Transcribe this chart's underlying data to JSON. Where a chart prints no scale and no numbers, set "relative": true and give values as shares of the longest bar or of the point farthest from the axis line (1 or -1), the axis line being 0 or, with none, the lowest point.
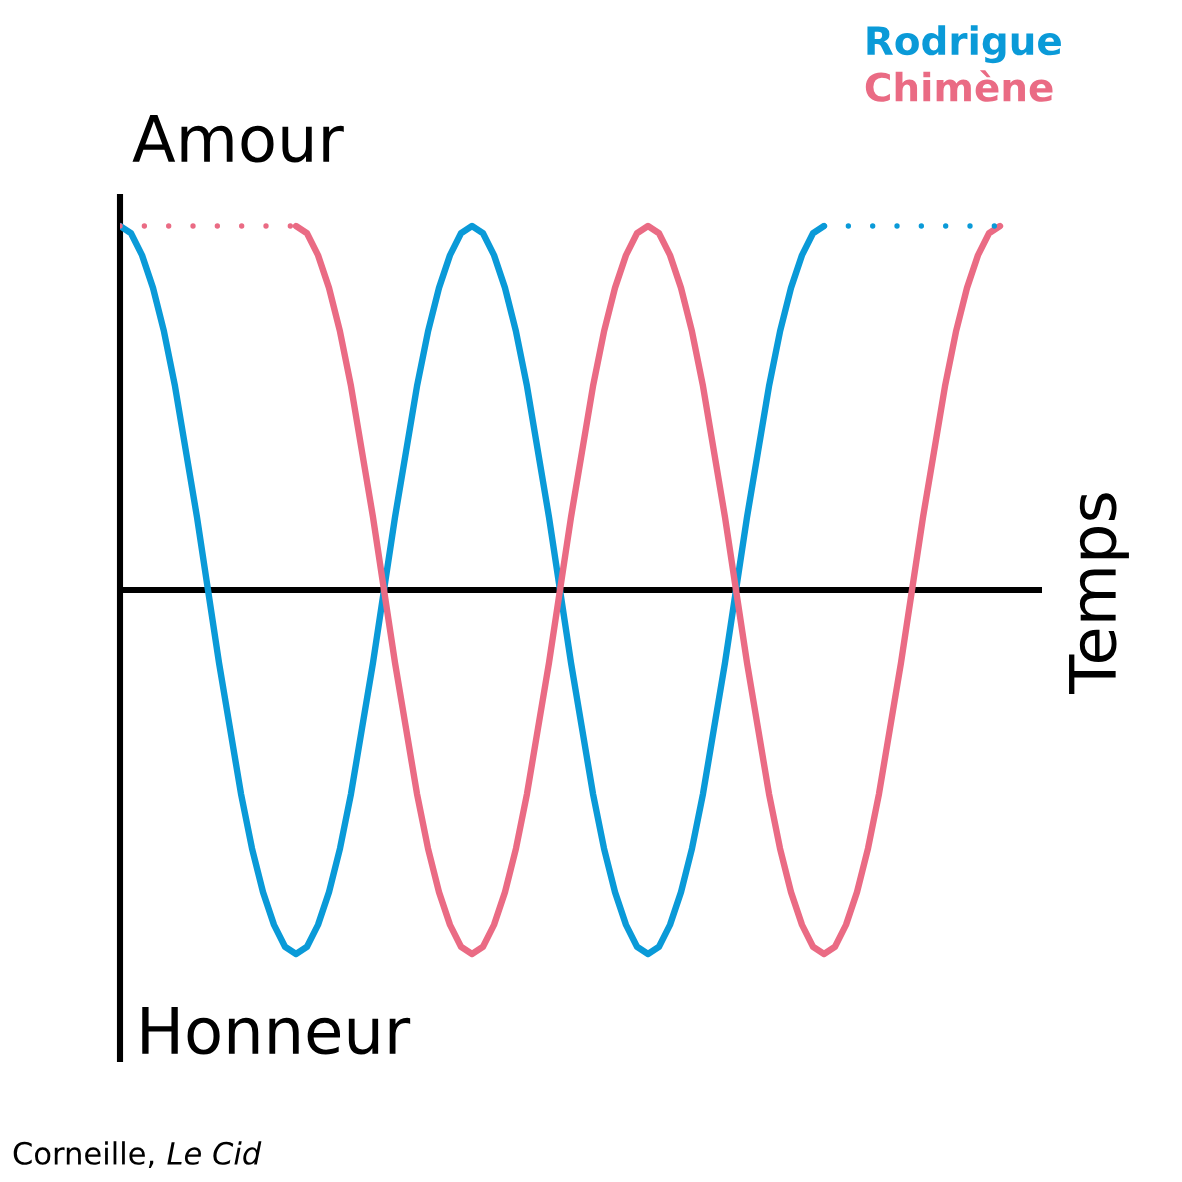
{
  "chart_data": {
    "type": "line",
    "relative": true,
    "annotations": [
      "Amour",
      "Honneur",
      "Temps",
      "Corneille, Le Cid"
    ],
    "legend": "top right",
    "line_style": "solid",
    "categories": [
      null,
      null,
      null,
      null,
      null,
      null,
      null,
      null,
      null,
      null,
      null,
      null,
      null,
      null,
      null,
      null,
      null,
      null,
      null,
      null,
      null,
      null,
      null,
      null,
      null,
      null,
      null,
      null,
      null,
      null,
      null,
      null,
      null,
      null,
      null,
      null,
      null,
      null,
      null,
      null,
      null,
      null,
      null,
      null,
      null,
      null,
      null,
      null,
      null,
      null,
      null,
      null,
      null,
      null,
      null,
      null,
      null,
      null,
      null,
      null,
      null,
      null,
      null,
      null,
      null,
      null,
      null,
      null,
      null,
      null,
      null,
      null,
      null,
      null,
      null,
      null,
      null,
      null,
      null,
      null,
      null
    ],
    "series": [
      {
        "name": "Rodrigue",
        "color": "#0a9ad8",
        "values": [
          1,
          0.98,
          0.92,
          0.83,
          0.71,
          0.56,
          0.38,
          0.2,
          0,
          -0.2,
          -0.38,
          -0.56,
          -0.71,
          -0.83,
          -0.92,
          -0.98,
          -1,
          -0.98,
          -0.92,
          -0.83,
          -0.71,
          -0.56,
          -0.38,
          -0.2,
          0,
          0.2,
          0.38,
          0.56,
          0.71,
          0.83,
          0.92,
          0.98,
          1,
          0.98,
          0.92,
          0.83,
          0.71,
          0.56,
          0.38,
          0.2,
          0,
          -0.2,
          -0.38,
          -0.56,
          -0.71,
          -0.83,
          -0.92,
          -0.98,
          -1,
          -0.98,
          -0.92,
          -0.83,
          -0.71,
          -0.56,
          -0.38,
          -0.2,
          0,
          0.2,
          0.38,
          0.56,
          0.71,
          0.83,
          0.92,
          0.98,
          1,
          null,
          null,
          null,
          null,
          null,
          null,
          null,
          null,
          null,
          null,
          null,
          null,
          null,
          null,
          null,
          null
        ]
      },
      {
        "name": "Chimène",
        "color": "#ea6b84",
        "values": [
          null,
          null,
          null,
          null,
          null,
          null,
          null,
          null,
          null,
          null,
          null,
          null,
          null,
          null,
          null,
          null,
          1,
          0.98,
          0.92,
          0.83,
          0.71,
          0.56,
          0.38,
          0.2,
          0,
          -0.2,
          -0.38,
          -0.56,
          -0.71,
          -0.83,
          -0.92,
          -0.98,
          -1,
          -0.98,
          -0.92,
          -0.83,
          -0.71,
          -0.56,
          -0.38,
          -0.2,
          0,
          0.2,
          0.38,
          0.56,
          0.71,
          0.83,
          0.92,
          0.98,
          1,
          0.98,
          0.92,
          0.83,
          0.71,
          0.56,
          0.38,
          0.2,
          0,
          -0.2,
          -0.38,
          -0.56,
          -0.71,
          -0.83,
          -0.92,
          -0.98,
          -1,
          -0.98,
          -0.92,
          -0.83,
          -0.71,
          -0.56,
          -0.38,
          -0.2,
          0,
          0.2,
          0.38,
          0.56,
          0.71,
          0.83,
          0.92,
          0.98,
          1
        ]
      },
      {
        "color": "#0a9ad8",
        "line_style": "dotted",
        "values": [
          null,
          null,
          null,
          null,
          null,
          null,
          null,
          null,
          null,
          null,
          null,
          null,
          null,
          null,
          null,
          null,
          null,
          null,
          null,
          null,
          null,
          null,
          null,
          null,
          null,
          null,
          null,
          null,
          null,
          null,
          null,
          null,
          null,
          null,
          null,
          null,
          null,
          null,
          null,
          null,
          null,
          null,
          null,
          null,
          null,
          null,
          null,
          null,
          null,
          null,
          null,
          null,
          null,
          null,
          null,
          null,
          null,
          null,
          null,
          null,
          null,
          null,
          null,
          null,
          1,
          1,
          1,
          1,
          1,
          1,
          1,
          1,
          1,
          1,
          1,
          1,
          1,
          1,
          1,
          1,
          1
        ]
      },
      {
        "color": "#ea6b84",
        "line_style": "dotted",
        "values": [
          1,
          1,
          1,
          1,
          1,
          1,
          1,
          1,
          1,
          1,
          1,
          1,
          1,
          1,
          1,
          1,
          1,
          null,
          null,
          null,
          null,
          null,
          null,
          null,
          null,
          null,
          null,
          null,
          null,
          null,
          null,
          null,
          null,
          null,
          null,
          null,
          null,
          null,
          null,
          null,
          null,
          null,
          null,
          null,
          null,
          null,
          null,
          null,
          null,
          null,
          null,
          null,
          null,
          null,
          null,
          null,
          null,
          null,
          null,
          null,
          null,
          null,
          null,
          null,
          null,
          null,
          null,
          null,
          null,
          null,
          null,
          null,
          null,
          null,
          null,
          null,
          null,
          null,
          null,
          null,
          null
        ]
      }
    ]
  }
}
